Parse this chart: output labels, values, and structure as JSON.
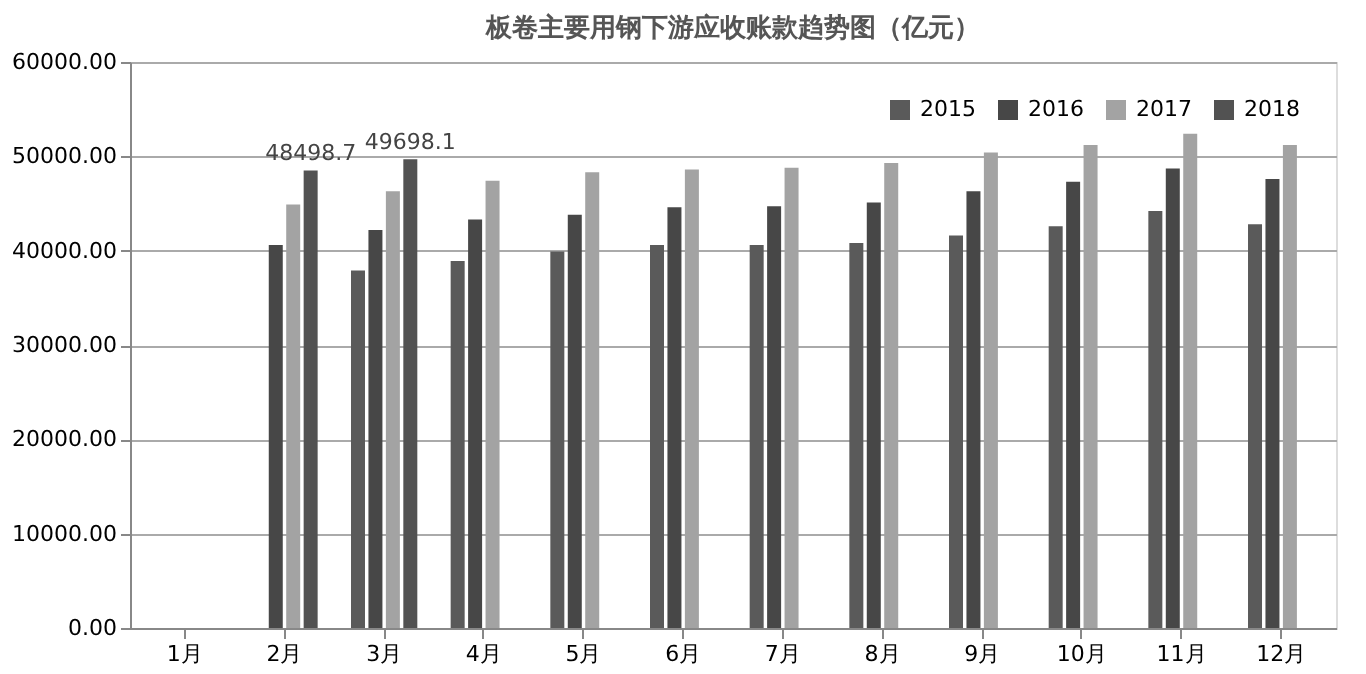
{
  "chart_data": {
    "type": "bar",
    "title": "板卷主要用钢下游应收账款趋势图（亿元）",
    "categories": [
      "1月",
      "2月",
      "3月",
      "4月",
      "5月",
      "6月",
      "7月",
      "8月",
      "9月",
      "10月",
      "11月",
      "12月"
    ],
    "series": [
      {
        "name": "2015",
        "color": "#5a5a5a",
        "values": [
          null,
          null,
          37900,
          38900,
          39900,
          40600,
          40600,
          40800,
          41600,
          42600,
          44200,
          42800
        ]
      },
      {
        "name": "2016",
        "color": "#474747",
        "values": [
          null,
          40600,
          42200,
          43300,
          43800,
          44600,
          44700,
          45100,
          46300,
          47300,
          48700,
          47600
        ]
      },
      {
        "name": "2017",
        "color": "#a3a3a3",
        "values": [
          null,
          44900,
          46300,
          47400,
          48300,
          48600,
          48800,
          49300,
          50400,
          51200,
          52400,
          51200
        ]
      },
      {
        "name": "2018",
        "color": "#525252",
        "values": [
          null,
          48498.7,
          49698.1,
          null,
          null,
          null,
          null,
          null,
          null,
          null,
          null,
          null
        ],
        "value_labels": [
          null,
          "48498.7",
          "49698.1",
          null,
          null,
          null,
          null,
          null,
          null,
          null,
          null,
          null
        ]
      }
    ],
    "ylim": [
      0,
      60000
    ],
    "yticks": [
      {
        "value": 0,
        "label": "0.00"
      },
      {
        "value": 10000,
        "label": "10000.00"
      },
      {
        "value": 20000,
        "label": "20000.00"
      },
      {
        "value": 30000,
        "label": "30000.00"
      },
      {
        "value": 40000,
        "label": "40000.00"
      },
      {
        "value": 50000,
        "label": "50000.00"
      },
      {
        "value": 60000,
        "label": "60000.00"
      }
    ],
    "grid": "y",
    "legend": "top right"
  }
}
